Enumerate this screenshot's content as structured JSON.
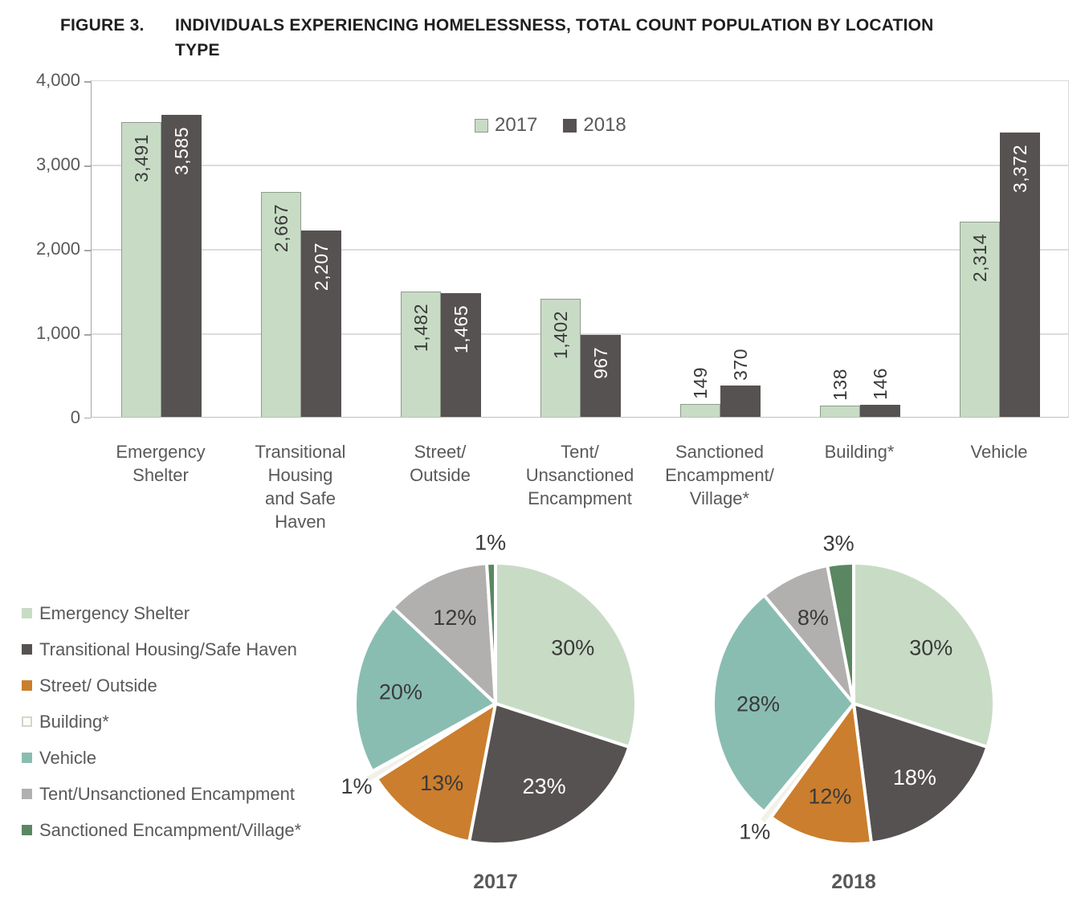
{
  "figure": {
    "label": "FIGURE 3.",
    "title": "INDIVIDUALS EXPERIENCING HOMELESSNESS, TOTAL COUNT POPULATION BY LOCATION TYPE"
  },
  "colors": {
    "green_2017": "#c8dcc5",
    "dark_2018": "#575252",
    "orange": "#cb7e2d",
    "building_fill": "#f2f1e9",
    "building_border": "#d6d5cb",
    "teal": "#8abdb2",
    "gray": "#b1b0af",
    "dark_green": "#5a8761",
    "text_dark": "#3a3a3a",
    "text_gray": "#595959",
    "grid": "#dcdcdc",
    "axis": "#a6a6a6",
    "bar_border_2017": "#8f9b8c"
  },
  "chart_data": [
    {
      "type": "bar",
      "title": "",
      "categories": [
        "Emergency Shelter",
        "Transitional Housing and Safe Haven",
        "Street/ Outside",
        "Tent/ Unsanctioned Encampment",
        "Sanctioned Encampment/ Village*",
        "Building*",
        "Vehicle"
      ],
      "category_lines": [
        [
          "Emergency",
          "Shelter"
        ],
        [
          "Transitional",
          "Housing",
          "and Safe",
          "Haven"
        ],
        [
          "Street/",
          "Outside"
        ],
        [
          "Tent/",
          "Unsanctioned",
          "Encampment"
        ],
        [
          "Sanctioned",
          "Encampment/",
          "Village*"
        ],
        [
          "Building*"
        ],
        [
          "Vehicle"
        ]
      ],
      "series": [
        {
          "name": "2017",
          "color": "#c8dcc5",
          "values": [
            3491,
            2667,
            1482,
            1402,
            149,
            138,
            2314
          ],
          "labels": [
            "3,491",
            "2,667",
            "1,482",
            "1,402",
            "149",
            "138",
            "2,314"
          ]
        },
        {
          "name": "2018",
          "color": "#575252",
          "values": [
            3585,
            2207,
            1465,
            967,
            370,
            146,
            3372
          ],
          "labels": [
            "3,585",
            "2,207",
            "1,465",
            "967",
            "370",
            "146",
            "3,372"
          ]
        }
      ],
      "ylim": [
        0,
        4000
      ],
      "yticks": [
        {
          "v": 0,
          "label": "0"
        },
        {
          "v": 1000,
          "label": "1,000"
        },
        {
          "v": 2000,
          "label": "2,000"
        },
        {
          "v": 3000,
          "label": "3,000"
        },
        {
          "v": 4000,
          "label": "4,000"
        }
      ],
      "grid": true,
      "legend_position": "top-center"
    },
    {
      "type": "pie",
      "title": "2017",
      "slices": [
        {
          "label": "Emergency Shelter",
          "pct": 30,
          "pct_label": "30%",
          "color": "#c8dcc5",
          "text": "#3a3a3a",
          "placement": "inside",
          "explode": false
        },
        {
          "label": "Transitional Housing/Safe Haven",
          "pct": 23,
          "pct_label": "23%",
          "color": "#575252",
          "text": "#ffffff",
          "placement": "inside",
          "explode": false
        },
        {
          "label": "Street/ Outside",
          "pct": 13,
          "pct_label": "13%",
          "color": "#cb7e2d",
          "text": "#3a3a3a",
          "placement": "inside",
          "explode": false
        },
        {
          "label": "Building*",
          "pct": 1,
          "pct_label": "1%",
          "color": "#f2f1e9",
          "text": "#3a3a3a",
          "placement": "outside",
          "explode": true
        },
        {
          "label": "Vehicle",
          "pct": 20,
          "pct_label": "20%",
          "color": "#8abdb2",
          "text": "#3a3a3a",
          "placement": "inside",
          "explode": false
        },
        {
          "label": "Tent/Unsanctioned Encampment",
          "pct": 12,
          "pct_label": "12%",
          "color": "#b1b0af",
          "text": "#3a3a3a",
          "placement": "inside",
          "explode": false
        },
        {
          "label": "Sanctioned Encampment/Village*",
          "pct": 1,
          "pct_label": "1%",
          "color": "#5a8761",
          "text": "#3a3a3a",
          "placement": "outside",
          "explode": false
        }
      ]
    },
    {
      "type": "pie",
      "title": "2018",
      "slices": [
        {
          "label": "Emergency Shelter",
          "pct": 30,
          "pct_label": "30%",
          "color": "#c8dcc5",
          "text": "#3a3a3a",
          "placement": "inside",
          "explode": false
        },
        {
          "label": "Transitional Housing/Safe Haven",
          "pct": 18,
          "pct_label": "18%",
          "color": "#575252",
          "text": "#ffffff",
          "placement": "inside",
          "explode": false
        },
        {
          "label": "Street/ Outside",
          "pct": 12,
          "pct_label": "12%",
          "color": "#cb7e2d",
          "text": "#3a3a3a",
          "placement": "inside",
          "explode": false
        },
        {
          "label": "Building*",
          "pct": 1,
          "pct_label": "1%",
          "color": "#f2f1e9",
          "text": "#3a3a3a",
          "placement": "outside",
          "explode": true
        },
        {
          "label": "Vehicle",
          "pct": 28,
          "pct_label": "28%",
          "color": "#8abdb2",
          "text": "#3a3a3a",
          "placement": "inside",
          "explode": false
        },
        {
          "label": "Tent/Unsanctioned Encampment",
          "pct": 8,
          "pct_label": "8%",
          "color": "#b1b0af",
          "text": "#3a3a3a",
          "placement": "inside",
          "explode": false
        },
        {
          "label": "Sanctioned Encampment/Village*",
          "pct": 3,
          "pct_label": "3%",
          "color": "#5a8761",
          "text": "#3a3a3a",
          "placement": "outside",
          "explode": false
        }
      ]
    }
  ],
  "pie_legend": [
    {
      "label": "Emergency Shelter",
      "color": "#c8dcc5",
      "border": ""
    },
    {
      "label": "Transitional Housing/Safe Haven",
      "color": "#575252",
      "border": ""
    },
    {
      "label": "Street/ Outside",
      "color": "#cb7e2d",
      "border": ""
    },
    {
      "label": "Building*",
      "color": "#fdfdf8",
      "border": "#d6d5cb"
    },
    {
      "label": "Vehicle",
      "color": "#8abdb2",
      "border": ""
    },
    {
      "label": "Tent/Unsanctioned Encampment",
      "color": "#b1b0af",
      "border": ""
    },
    {
      "label": "Sanctioned Encampment/Village*",
      "color": "#5a8761",
      "border": ""
    }
  ]
}
